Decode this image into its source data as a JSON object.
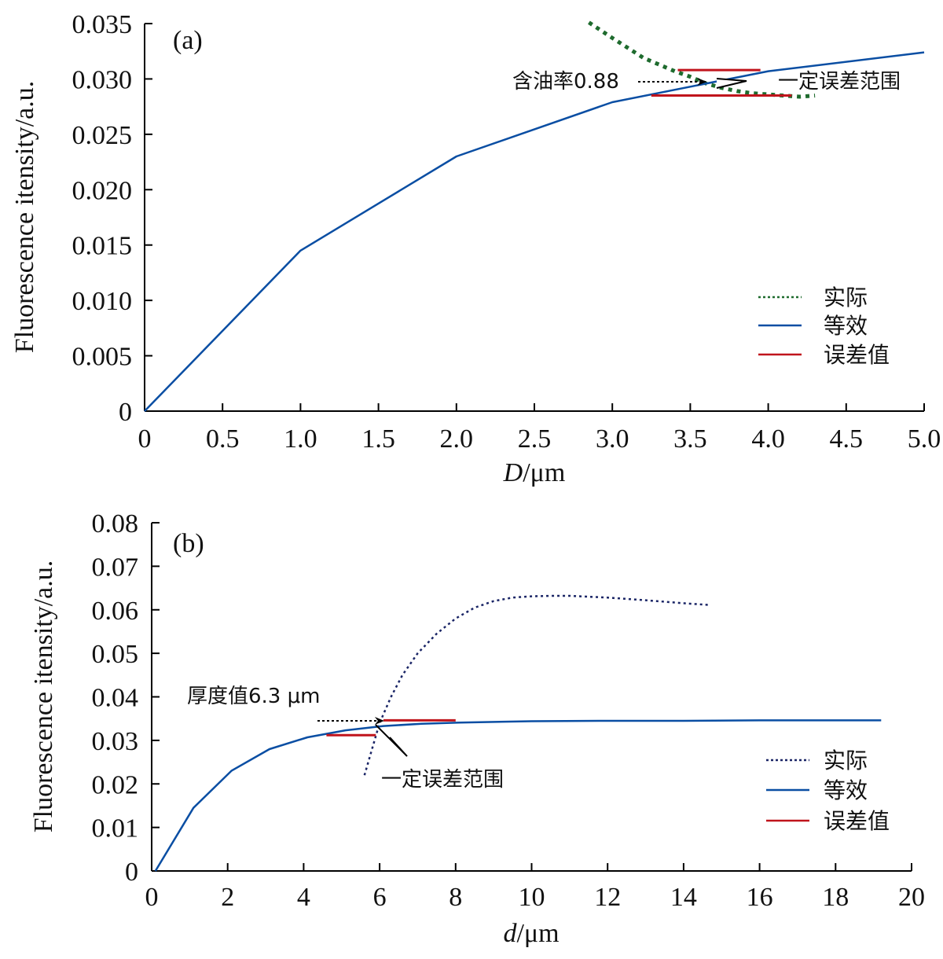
{
  "chart_data": [
    {
      "panel": "(a)",
      "type": "line",
      "xlabel": "D/μm",
      "xlabel_italic": "D",
      "xlabel_rest": "/μm",
      "ylabel": "Fluorescence itensity/a.u.",
      "xlim": [
        0,
        5.0
      ],
      "ylim": [
        0,
        0.035
      ],
      "xticks": [
        "0",
        "0.5",
        "1.0",
        "1.5",
        "2.0",
        "2.5",
        "3.0",
        "3.5",
        "4.0",
        "4.5",
        "5.0"
      ],
      "yticks": [
        "0",
        "0.005",
        "0.010",
        "0.015",
        "0.020",
        "0.025",
        "0.030",
        "0.035"
      ],
      "series": [
        {
          "name": "实际",
          "style": "dotted",
          "color": "#1e6b2e",
          "x": [
            2.85,
            3.0,
            3.2,
            3.4,
            3.5,
            3.6,
            3.7,
            3.8,
            3.9,
            4.0,
            4.1,
            4.2,
            4.3
          ],
          "y": [
            0.0351,
            0.0337,
            0.0319,
            0.0307,
            0.0302,
            0.0296,
            0.0292,
            0.0289,
            0.0287,
            0.0286,
            0.0285,
            0.0284,
            0.0285
          ]
        },
        {
          "name": "等效",
          "style": "solid",
          "color": "#0a4ea3",
          "x": [
            0,
            1.0,
            2.0,
            3.0,
            4.0,
            5.0
          ],
          "y": [
            0,
            0.0145,
            0.023,
            0.0279,
            0.0307,
            0.0324
          ]
        }
      ],
      "error_bars": {
        "name": "误差值",
        "color": "#c0141c",
        "segments": [
          {
            "x0": 3.42,
            "x1": 3.95,
            "y": 0.0308
          },
          {
            "x0": 3.25,
            "x1": 4.15,
            "y": 0.0285
          }
        ]
      },
      "annotations": [
        {
          "text": "含油率0.88",
          "arrow_to": [
            3.6,
            0.0296
          ]
        },
        {
          "text": "一定误差范围"
        }
      ],
      "legend_position": "center-right"
    },
    {
      "panel": "(b)",
      "type": "line",
      "xlabel": "d/μm",
      "xlabel_italic": "d",
      "xlabel_rest": "/μm",
      "ylabel": "Fluorescence itensity/a.u.",
      "xlim": [
        0,
        20
      ],
      "ylim": [
        0,
        0.08
      ],
      "xticks": [
        "0",
        "2",
        "4",
        "6",
        "8",
        "10",
        "12",
        "14",
        "16",
        "18",
        "20"
      ],
      "yticks": [
        "0",
        "0.01",
        "0.02",
        "0.03",
        "0.04",
        "0.05",
        "0.06",
        "0.07",
        "0.08"
      ],
      "series": [
        {
          "name": "实际",
          "style": "dotted",
          "color": "#1a2566",
          "x": [
            5.6,
            5.8,
            6.0,
            6.3,
            6.6,
            7.0,
            7.5,
            8.0,
            8.5,
            9.0,
            9.5,
            10.0,
            10.5,
            11.0,
            12.0,
            13.0,
            14.0,
            14.7
          ],
          "y": [
            0.022,
            0.028,
            0.034,
            0.04,
            0.045,
            0.05,
            0.0545,
            0.058,
            0.0605,
            0.062,
            0.0628,
            0.0631,
            0.0632,
            0.0632,
            0.0628,
            0.0622,
            0.0615,
            0.0611
          ]
        },
        {
          "name": "等效",
          "style": "solid",
          "color": "#0a4ea3",
          "x": [
            0.1,
            1.1,
            2.1,
            3.1,
            4.1,
            5.1,
            6.1,
            7.1,
            8.1,
            10.0,
            12.0,
            14.0,
            16.0,
            19.2
          ],
          "y": [
            0,
            0.0145,
            0.023,
            0.028,
            0.0307,
            0.0323,
            0.0333,
            0.0338,
            0.0341,
            0.0344,
            0.0345,
            0.0345,
            0.0346,
            0.0346
          ]
        }
      ],
      "error_bars": {
        "name": "误差值",
        "color": "#c0141c",
        "segments": [
          {
            "x0": 6.1,
            "x1": 8.0,
            "y": 0.0346
          },
          {
            "x0": 4.6,
            "x1": 5.9,
            "y": 0.0312
          }
        ]
      },
      "annotations": [
        {
          "text": "厚度值6.3 μm",
          "arrow_to": [
            6.1,
            0.0344
          ]
        },
        {
          "text": "一定误差范围"
        }
      ],
      "legend_position": "bottom-right"
    }
  ]
}
